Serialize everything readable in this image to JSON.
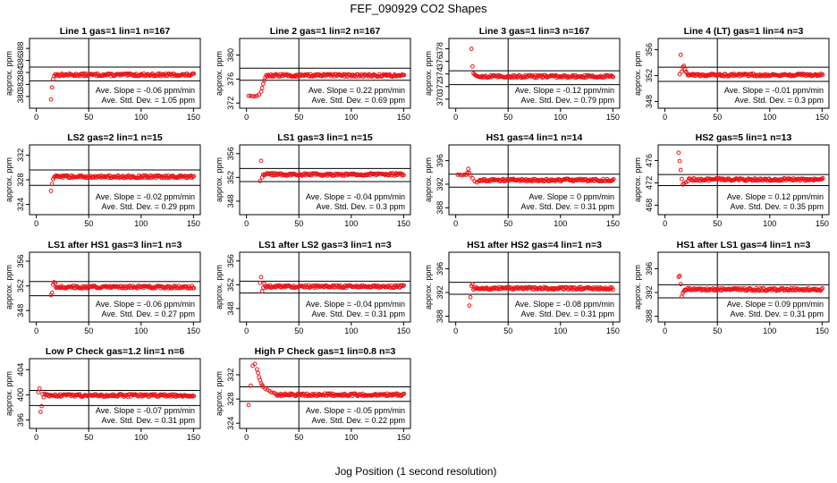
{
  "figure": {
    "title": "FEF_090929  CO2 Shapes",
    "xlabel": "Jog Position (1 second resolution)",
    "ylabel": "approx. ppm",
    "slope_prefix": "Ave. Slope = ",
    "slope_unit": " ppm/min",
    "sd_prefix": "Ave. Std. Dev. = ",
    "sd_unit": " ppm",
    "point_color": "#e8161a"
  },
  "chart_data": [
    {
      "type": "scatter",
      "title": "Line 1 gas=1 lin=1 n=167",
      "xlim": [
        0,
        150
      ],
      "xticks": [
        0,
        50,
        100,
        150
      ],
      "ylim": [
        378.5,
        389.2
      ],
      "yticks": [
        380,
        382,
        384,
        386,
        388
      ],
      "hlines": [
        384.9,
        382.6
      ],
      "vline": 50,
      "slope": "-0.06",
      "sd": "1.05",
      "level": 383.6,
      "initial": [
        [
          14,
          379.5
        ],
        [
          15,
          381.5
        ],
        [
          16,
          382.9
        ],
        [
          17,
          383.4
        ],
        [
          18,
          383.7
        ]
      ]
    },
    {
      "type": "scatter",
      "title": "Line 2 gas=1 lin=2 n=167",
      "xlim": [
        0,
        150
      ],
      "xticks": [
        0,
        50,
        100,
        150
      ],
      "ylim": [
        371.6,
        382.3
      ],
      "yticks": [
        372,
        376,
        380
      ],
      "hlines": [
        377.8,
        375.8
      ],
      "vline": 50,
      "slope": "0.22",
      "sd": "0.69",
      "level": 376.6,
      "initial": [
        [
          2,
          373.2
        ],
        [
          4,
          373.2
        ],
        [
          6,
          373.1
        ],
        [
          8,
          373.1
        ],
        [
          10,
          373.2
        ],
        [
          12,
          373.4
        ],
        [
          14,
          373.9
        ],
        [
          15,
          374.5
        ],
        [
          16,
          375.2
        ],
        [
          17,
          375.8
        ],
        [
          18,
          376.3
        ]
      ]
    },
    {
      "type": "scatter",
      "title": "Line 3 gas=1 lin=3 n=167",
      "xlim": [
        0,
        150
      ],
      "xticks": [
        0,
        50,
        100,
        150
      ],
      "ylim": [
        369.0,
        379.2
      ],
      "yticks": [
        370,
        372,
        374,
        376,
        378
      ],
      "hlines": [
        374.5,
        372.3
      ],
      "vline": 50,
      "slope": "-0.12",
      "sd": "0.79",
      "level": 373.6,
      "initial": [
        [
          15,
          378.0
        ],
        [
          16,
          375.2
        ],
        [
          17,
          374.1
        ],
        [
          18,
          373.9
        ]
      ]
    },
    {
      "type": "scatter",
      "title": "Line 4 (LT) gas=1 lin=4 n=3",
      "xlim": [
        0,
        150
      ],
      "xticks": [
        0,
        50,
        100,
        150
      ],
      "ylim": [
        347.4,
        357.3
      ],
      "yticks": [
        348,
        352,
        356
      ],
      "hlines": [
        353.3,
        351.1
      ],
      "vline": 50,
      "slope": "-0.01",
      "sd": "0.3",
      "level": 352.1,
      "initial": [
        [
          14,
          352.2
        ],
        [
          15,
          355.2
        ],
        [
          16,
          352.6
        ],
        [
          17,
          353.3
        ],
        [
          18,
          353.5
        ],
        [
          19,
          353.0
        ],
        [
          20,
          352.6
        ],
        [
          21,
          352.4
        ]
      ]
    },
    {
      "type": "scatter",
      "title": "LS2 gas=2 lin=1 n=15",
      "xlim": [
        0,
        150
      ],
      "xticks": [
        0,
        50,
        100,
        150
      ],
      "ylim": [
        322.8,
        333.2
      ],
      "yticks": [
        324,
        328,
        332
      ],
      "hlines": [
        329.6,
        327.1
      ],
      "vline": 50,
      "slope": "-0.02",
      "sd": "0.29",
      "level": 328.5,
      "initial": [
        [
          14,
          326.2
        ],
        [
          15,
          327.3
        ],
        [
          16,
          328.1
        ],
        [
          17,
          328.4
        ]
      ]
    },
    {
      "type": "scatter",
      "title": "LS1 gas=3 lin=1 n=15",
      "xlim": [
        0,
        150
      ],
      "xticks": [
        0,
        50,
        100,
        150
      ],
      "ylim": [
        346.2,
        357.0
      ],
      "yticks": [
        348,
        352,
        356
      ],
      "hlines": [
        353.5,
        351.3
      ],
      "vline": 50,
      "slope": "-0.04",
      "sd": "0.3",
      "level": 352.5,
      "initial": [
        [
          13,
          351.4
        ],
        [
          14,
          354.8
        ],
        [
          15,
          352.0
        ],
        [
          16,
          352.5
        ]
      ]
    },
    {
      "type": "scatter",
      "title": "HS1 gas=4 lin=1 n=14",
      "xlim": [
        0,
        150
      ],
      "xticks": [
        0,
        50,
        100,
        150
      ],
      "ylim": [
        387.3,
        398.2
      ],
      "yticks": [
        388,
        392,
        396
      ],
      "hlines": [
        393.7,
        391.5
      ],
      "vline": 50,
      "slope": "0",
      "sd": "0.31",
      "level": 392.7,
      "initial": [
        [
          2,
          393.6
        ],
        [
          4,
          393.6
        ],
        [
          6,
          393.5
        ],
        [
          8,
          393.6
        ],
        [
          10,
          393.6
        ],
        [
          11,
          393.9
        ],
        [
          12,
          394.6
        ],
        [
          13,
          393.9
        ],
        [
          14,
          393.5
        ],
        [
          16,
          393.0
        ],
        [
          18,
          392.5
        ],
        [
          20,
          392.3
        ],
        [
          22,
          392.5
        ]
      ]
    },
    {
      "type": "scatter",
      "title": "HS2 gas=5 lin=1 n=13",
      "xlim": [
        0,
        150
      ],
      "xticks": [
        0,
        50,
        100,
        150
      ],
      "ylim": [
        466.8,
        478.3
      ],
      "yticks": [
        468,
        472,
        476
      ],
      "hlines": [
        473.5,
        471.5
      ],
      "vline": 50,
      "slope": "0.12",
      "sd": "0.35",
      "level": 472.6,
      "initial": [
        [
          13,
          477.4
        ],
        [
          14,
          475.9
        ],
        [
          15,
          474.3
        ],
        [
          16,
          472.7
        ],
        [
          17,
          471.7
        ],
        [
          18,
          471.9
        ],
        [
          20,
          472.1
        ],
        [
          22,
          472.3
        ]
      ]
    },
    {
      "type": "scatter",
      "title": "LS1 after HS1 gas=3 lin=1 n=3",
      "xlim": [
        0,
        150
      ],
      "xticks": [
        0,
        50,
        100,
        150
      ],
      "ylim": [
        346.6,
        357.0
      ],
      "yticks": [
        348,
        352,
        356
      ],
      "hlines": [
        352.7,
        350.4
      ],
      "vline": 50,
      "slope": "-0.06",
      "sd": "0.27",
      "level": 351.8,
      "initial": [
        [
          14,
          350.5
        ],
        [
          15,
          350.9
        ],
        [
          16,
          352.2
        ],
        [
          17,
          352.6
        ],
        [
          18,
          352.4
        ]
      ]
    },
    {
      "type": "scatter",
      "title": "LS1 after LS2 gas=3 lin=1 n=3",
      "xlim": [
        0,
        150
      ],
      "xticks": [
        0,
        50,
        100,
        150
      ],
      "ylim": [
        346.2,
        357.0
      ],
      "yticks": [
        348,
        352,
        356
      ],
      "hlines": [
        352.6,
        350.6
      ],
      "vline": 50,
      "slope": "-0.04",
      "sd": "0.31",
      "level": 351.7,
      "initial": [
        [
          13,
          352.3
        ],
        [
          14,
          353.3
        ],
        [
          15,
          350.9
        ],
        [
          16,
          351.5
        ],
        [
          17,
          352.2
        ]
      ]
    },
    {
      "type": "scatter",
      "title": "HS1 after HS2 gas=4 lin=1 n=3",
      "xlim": [
        0,
        150
      ],
      "xticks": [
        0,
        50,
        100,
        150
      ],
      "ylim": [
        387.5,
        398.3
      ],
      "yticks": [
        388,
        392,
        396
      ],
      "hlines": [
        393.7,
        391.7
      ],
      "vline": 50,
      "slope": "-0.08",
      "sd": "0.31",
      "level": 392.7,
      "initial": [
        [
          13,
          389.8
        ],
        [
          14,
          391.2
        ],
        [
          15,
          393.1
        ],
        [
          16,
          393.4
        ]
      ]
    },
    {
      "type": "scatter",
      "title": "HS1 after LS1 gas=4 lin=1 n=3",
      "xlim": [
        0,
        150
      ],
      "xticks": [
        0,
        50,
        100,
        150
      ],
      "ylim": [
        387.5,
        398.3
      ],
      "yticks": [
        388,
        392,
        396
      ],
      "hlines": [
        393.3,
        391.1
      ],
      "vline": 50,
      "slope": "0.09",
      "sd": "0.31",
      "level": 392.5,
      "initial": [
        [
          13,
          394.6
        ],
        [
          14,
          394.8
        ],
        [
          15,
          393.4
        ],
        [
          16,
          391.3
        ],
        [
          17,
          391.9
        ],
        [
          18,
          392.2
        ]
      ]
    },
    {
      "type": "scatter",
      "title": "Low P Check gas=1.2 lin=1 n=6",
      "xlim": [
        0,
        150
      ],
      "xticks": [
        0,
        50,
        100,
        150
      ],
      "ylim": [
        395.1,
        405.3
      ],
      "yticks": [
        396,
        400,
        404
      ],
      "hlines": [
        400.7,
        398.3
      ],
      "vline": 50,
      "slope": "-0.07",
      "sd": "0.31",
      "level": 399.9,
      "initial": [
        [
          2,
          400.4
        ],
        [
          3,
          401.0
        ],
        [
          4,
          397.3
        ],
        [
          5,
          398.2
        ],
        [
          6,
          400.1
        ],
        [
          7,
          399.6
        ],
        [
          8,
          400.2
        ],
        [
          9,
          400.0
        ]
      ]
    },
    {
      "type": "scatter",
      "title": "High P Check gas=1 lin=0.8 n=3",
      "xlim": [
        0,
        150
      ],
      "xticks": [
        0,
        50,
        100,
        150
      ],
      "ylim": [
        323.6,
        334.2
      ],
      "yticks": [
        324,
        328,
        332
      ],
      "hlines": [
        330.0,
        327.6
      ],
      "vline": 50,
      "slope": "-0.05",
      "sd": "0.22",
      "level": 328.7,
      "initial": [
        [
          2,
          327.0
        ],
        [
          4,
          330.2
        ],
        [
          6,
          333.5
        ],
        [
          8,
          333.8
        ],
        [
          10,
          332.9
        ],
        [
          11,
          332.3
        ],
        [
          12,
          331.6
        ],
        [
          13,
          331.1
        ],
        [
          14,
          330.6
        ],
        [
          15,
          330.3
        ],
        [
          16,
          330.0
        ],
        [
          18,
          329.7
        ],
        [
          20,
          329.5
        ],
        [
          22,
          329.3
        ],
        [
          24,
          329.1
        ],
        [
          26,
          329.0
        ],
        [
          28,
          328.9
        ]
      ]
    }
  ]
}
